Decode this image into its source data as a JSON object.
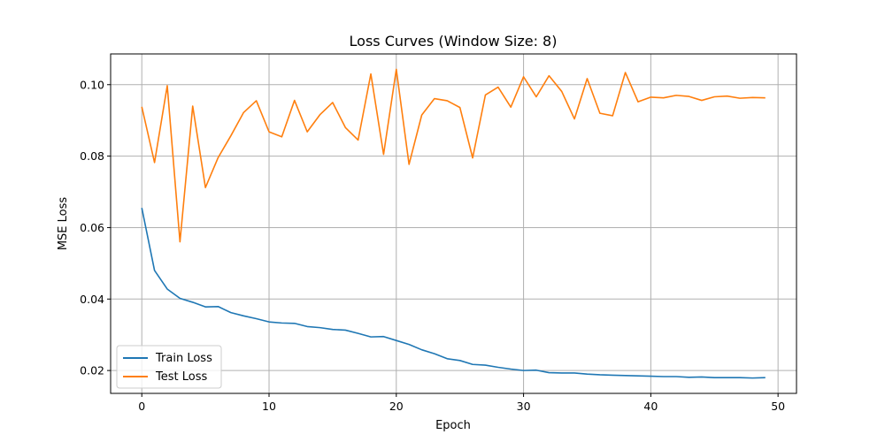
{
  "chart_data": {
    "type": "line",
    "title": "Loss Curves (Window Size: 8)",
    "xlabel": "Epoch",
    "ylabel": "MSE Loss",
    "xlim": [
      -2.45,
      51.45
    ],
    "ylim": [
      0.0136,
      0.1086
    ],
    "xticks": [
      0,
      10,
      20,
      30,
      40,
      50
    ],
    "xtick_labels": [
      "0",
      "10",
      "20",
      "30",
      "40",
      "50"
    ],
    "yticks": [
      0.02,
      0.04,
      0.06,
      0.08,
      0.1
    ],
    "ytick_labels": [
      "0.02",
      "0.04",
      "0.06",
      "0.08",
      "0.10"
    ],
    "grid": true,
    "legend_position": "lower-left",
    "x": [
      0,
      1,
      2,
      3,
      4,
      5,
      6,
      7,
      8,
      9,
      10,
      11,
      12,
      13,
      14,
      15,
      16,
      17,
      18,
      19,
      20,
      21,
      22,
      23,
      24,
      25,
      26,
      27,
      28,
      29,
      30,
      31,
      32,
      33,
      34,
      35,
      36,
      37,
      38,
      39,
      40,
      41,
      42,
      43,
      44,
      45,
      46,
      47,
      48,
      49
    ],
    "series": [
      {
        "name": "Train Loss",
        "color": "#1f77b4",
        "values": [
          0.0655,
          0.048,
          0.0428,
          0.0402,
          0.0391,
          0.0378,
          0.0379,
          0.0362,
          0.0353,
          0.0345,
          0.0336,
          0.0333,
          0.0332,
          0.0323,
          0.032,
          0.0315,
          0.0313,
          0.0304,
          0.0294,
          0.0295,
          0.0284,
          0.0273,
          0.0258,
          0.0247,
          0.0233,
          0.0228,
          0.0217,
          0.0215,
          0.0209,
          0.0204,
          0.02,
          0.0201,
          0.0194,
          0.0193,
          0.0193,
          0.019,
          0.0188,
          0.0187,
          0.0186,
          0.0185,
          0.0184,
          0.0183,
          0.0183,
          0.0181,
          0.0182,
          0.018,
          0.018,
          0.018,
          0.0179,
          0.018
        ]
      },
      {
        "name": "Test Loss",
        "color": "#ff7f0e",
        "values": [
          0.0938,
          0.0782,
          0.0997,
          0.056,
          0.094,
          0.0712,
          0.0796,
          0.0857,
          0.0922,
          0.0955,
          0.0868,
          0.0854,
          0.0956,
          0.0868,
          0.0916,
          0.095,
          0.088,
          0.0845,
          0.103,
          0.0805,
          0.1043,
          0.0777,
          0.0915,
          0.0961,
          0.0955,
          0.0936,
          0.0795,
          0.0971,
          0.0993,
          0.0937,
          0.1022,
          0.0966,
          0.1025,
          0.0981,
          0.0904,
          0.1017,
          0.092,
          0.0913,
          0.1034,
          0.0952,
          0.0965,
          0.0963,
          0.097,
          0.0967,
          0.0956,
          0.0966,
          0.0968,
          0.0962,
          0.0964,
          0.0963
        ]
      }
    ]
  }
}
